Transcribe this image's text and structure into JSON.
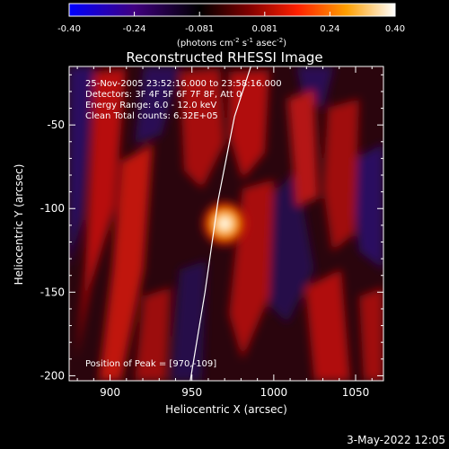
{
  "colorbar": {
    "ticks": [
      "-0.40",
      "-0.24",
      "-0.081",
      "0.081",
      "0.24",
      "0.40"
    ],
    "units_prefix": "(photons cm",
    "units_exp1": "-2",
    "units_mid": " s",
    "units_exp2": "-1",
    "units_suffix": " asec",
    "units_exp3": "-2",
    "units_close": ")"
  },
  "chart_data": {
    "type": "heatmap",
    "title": "Reconstructed RHESSI Image",
    "xlabel": "Heliocentric X (arcsec)",
    "ylabel": "Heliocentric Y (arcsec)",
    "xlim": [
      875,
      1067
    ],
    "ylim": [
      -203,
      -15
    ],
    "x_ticks": [
      "900",
      "950",
      "1000",
      "1050"
    ],
    "y_ticks": [
      "-50",
      "-100",
      "-150",
      "-200"
    ],
    "color_range": [
      -0.4,
      0.4
    ],
    "colormap": [
      "#0000ff",
      "#40007f",
      "#000000",
      "#7f0000",
      "#ff2000",
      "#ff9f00",
      "#ffffff"
    ],
    "peak": {
      "x": 970,
      "y": -109,
      "value": 0.4
    },
    "limb_points": [
      [
        949,
        -203
      ],
      [
        958,
        -150
      ],
      [
        966,
        -95
      ],
      [
        976,
        -45
      ],
      [
        986,
        -15
      ]
    ],
    "annotations": [
      "25-Nov-2005 23:52:16.000 to 23:58:16.000",
      "Detectors: 3F 4F 5F 6F 7F 8F, Att 0",
      "Energy Range: 6.0 - 12.0 keV",
      "Clean     Total counts: 6.32E+05"
    ],
    "peak_label": "Position of Peak = [970,-109]"
  },
  "footer_date": "3-May-2022 12:05"
}
